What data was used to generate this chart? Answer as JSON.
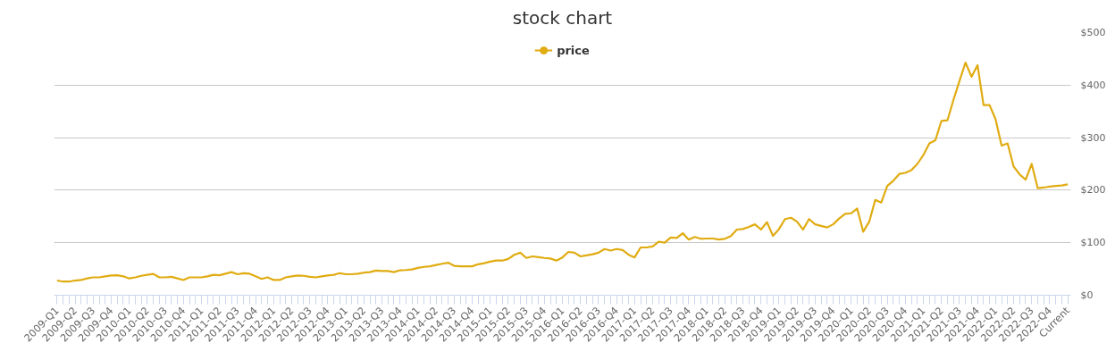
{
  "chart_data": {
    "type": "line",
    "title": "stock chart",
    "categories": [
      "2009-Q1",
      null,
      null,
      "2009-Q2",
      null,
      null,
      "2009-Q3",
      null,
      null,
      "2009-Q4",
      null,
      null,
      "2010-Q1",
      null,
      null,
      "2010-Q2",
      null,
      null,
      "2010-Q3",
      null,
      null,
      "2010-Q4",
      null,
      null,
      "2011-Q1",
      null,
      null,
      "2011-Q2",
      null,
      null,
      "2011-Q3",
      null,
      null,
      "2011-Q4",
      null,
      null,
      "2012-Q1",
      null,
      null,
      "2012-Q2",
      null,
      null,
      "2012-Q3",
      null,
      null,
      "2012-Q4",
      null,
      null,
      "2013-Q1",
      null,
      null,
      "2013-Q2",
      null,
      null,
      "2013-Q3",
      null,
      null,
      "2013-Q4",
      null,
      null,
      "2014-Q1",
      null,
      null,
      "2014-Q2",
      null,
      null,
      "2014-Q3",
      null,
      null,
      "2014-Q4",
      null,
      null,
      "2015-Q1",
      null,
      null,
      "2015-Q2",
      null,
      null,
      "2015-Q3",
      null,
      null,
      "2015-Q4",
      null,
      null,
      "2016-Q1",
      null,
      null,
      "2016-Q2",
      null,
      null,
      "2016-Q3",
      null,
      null,
      "2016-Q4",
      null,
      null,
      "2017-Q1",
      null,
      null,
      "2017-Q2",
      null,
      null,
      "2017-Q3",
      null,
      null,
      "2017-Q4",
      null,
      null,
      "2018-Q1",
      null,
      null,
      "2018-Q2",
      null,
      null,
      "2018-Q3",
      null,
      null,
      "2018-Q4",
      null,
      null,
      "2019-Q1",
      null,
      null,
      "2019-Q2",
      null,
      null,
      "2019-Q3",
      null,
      null,
      "2019-Q4",
      null,
      null,
      "2020-Q1",
      null,
      null,
      "2020-Q2",
      null,
      null,
      "2020-Q3",
      null,
      null,
      "2020-Q4",
      null,
      null,
      "2021-Q1",
      null,
      null,
      "2021-Q2",
      null,
      null,
      "2021-Q3",
      null,
      null,
      "2021-Q4",
      null,
      null,
      "2022-Q1",
      null,
      null,
      "2022-Q2",
      null,
      null,
      "2022-Q3",
      null,
      null,
      "2022-Q4",
      null,
      null,
      "Current"
    ],
    "series": [
      {
        "name": "price",
        "color": "#e0ac12",
        "values": [
          28,
          26,
          26,
          28,
          29,
          32,
          34,
          34,
          36,
          37.5,
          38,
          36,
          32,
          34,
          37,
          39,
          40.6,
          34,
          34,
          35,
          32,
          29,
          34,
          34,
          34,
          36,
          39,
          38,
          41,
          44,
          40,
          42,
          41,
          36,
          31,
          34,
          29,
          29,
          34,
          36,
          37.5,
          37,
          35,
          34,
          36,
          37.5,
          39,
          42,
          40,
          40,
          41,
          43,
          44,
          47,
          46,
          46,
          44,
          47.5,
          48,
          49,
          52,
          54,
          55,
          57.5,
          60,
          62,
          56,
          55,
          55,
          55,
          59,
          61,
          64,
          66,
          66,
          69,
          77,
          81,
          71,
          74,
          72.5,
          71,
          70,
          66,
          72,
          82.5,
          81,
          74,
          76,
          78,
          81,
          88,
          85,
          88,
          86,
          77,
          72,
          91,
          91,
          93,
          102,
          100,
          110,
          109,
          118,
          106,
          111,
          107.5,
          108,
          108,
          106,
          107.5,
          112.5,
          125,
          126,
          130,
          135,
          125,
          139,
          113,
          126,
          145,
          147.5,
          140,
          125,
          145,
          135,
          132,
          129,
          135,
          146,
          155,
          156,
          165,
          121,
          140,
          181.5,
          176.5,
          208,
          218,
          231,
          233,
          238,
          250,
          267,
          289,
          295,
          332,
          333,
          372,
          408,
          443,
          416,
          438,
          362,
          362,
          335,
          285,
          289,
          245,
          230,
          220,
          250,
          204,
          205,
          207,
          208,
          209,
          211
        ]
      }
    ],
    "ylim": [
      0,
      500
    ],
    "yticks": [
      {
        "value": 0,
        "label": "$0"
      },
      {
        "value": 100,
        "label": "$100"
      },
      {
        "value": 200,
        "label": "$200"
      },
      {
        "value": 300,
        "label": "$300"
      },
      {
        "value": 400,
        "label": "$400"
      },
      {
        "value": 500,
        "label": "$500"
      }
    ],
    "grid": "y",
    "legend": "top"
  }
}
